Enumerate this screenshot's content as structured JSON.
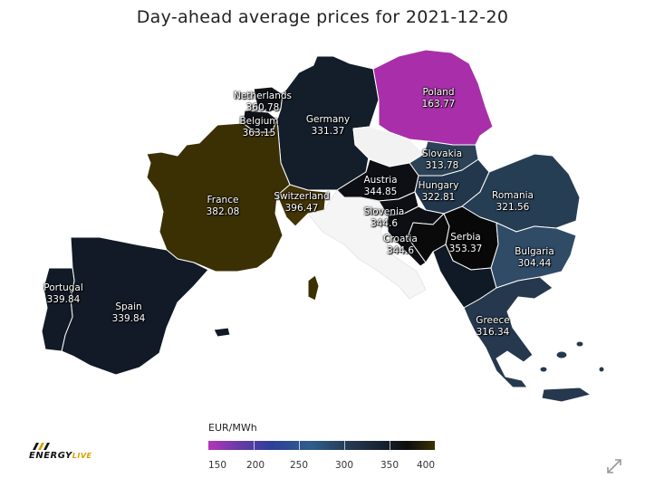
{
  "title": "Day-ahead average prices for 2021-12-20",
  "legend": {
    "title": "EUR/MWh",
    "ticks": [
      "150",
      "200",
      "250",
      "300",
      "350",
      "400"
    ]
  },
  "logo": {
    "main": "ENERGY",
    "accent": "LIVE"
  },
  "icons": {
    "expand": "expand-arrows-icon",
    "logo": "energy-live-logo-icon"
  },
  "colors": {
    "very_low": "#a82fa9",
    "mid": "#2d4a66",
    "dark": "#141b26",
    "black": "#0a0a0a",
    "high": "#3b3004",
    "no_data": "#f2f2f2"
  },
  "countries": [
    {
      "name": "Netherlands",
      "value": "360.78"
    },
    {
      "name": "Belgium",
      "value": "363.15"
    },
    {
      "name": "Germany",
      "value": "331.37"
    },
    {
      "name": "Poland",
      "value": "163.77"
    },
    {
      "name": "France",
      "value": "382.08"
    },
    {
      "name": "Switzerland",
      "value": "396.47"
    },
    {
      "name": "Austria",
      "value": "344.85"
    },
    {
      "name": "Slovakia",
      "value": "313.78"
    },
    {
      "name": "Hungary",
      "value": "322.81"
    },
    {
      "name": "Romania",
      "value": "321.56"
    },
    {
      "name": "Slovenia",
      "value": "344.6"
    },
    {
      "name": "Croatia",
      "value": "344.6"
    },
    {
      "name": "Serbia",
      "value": "353.37"
    },
    {
      "name": "Bulgaria",
      "value": "304.44"
    },
    {
      "name": "Portugal",
      "value": "339.84"
    },
    {
      "name": "Spain",
      "value": "339.84"
    },
    {
      "name": "Greece",
      "value": "316.34"
    }
  ]
}
